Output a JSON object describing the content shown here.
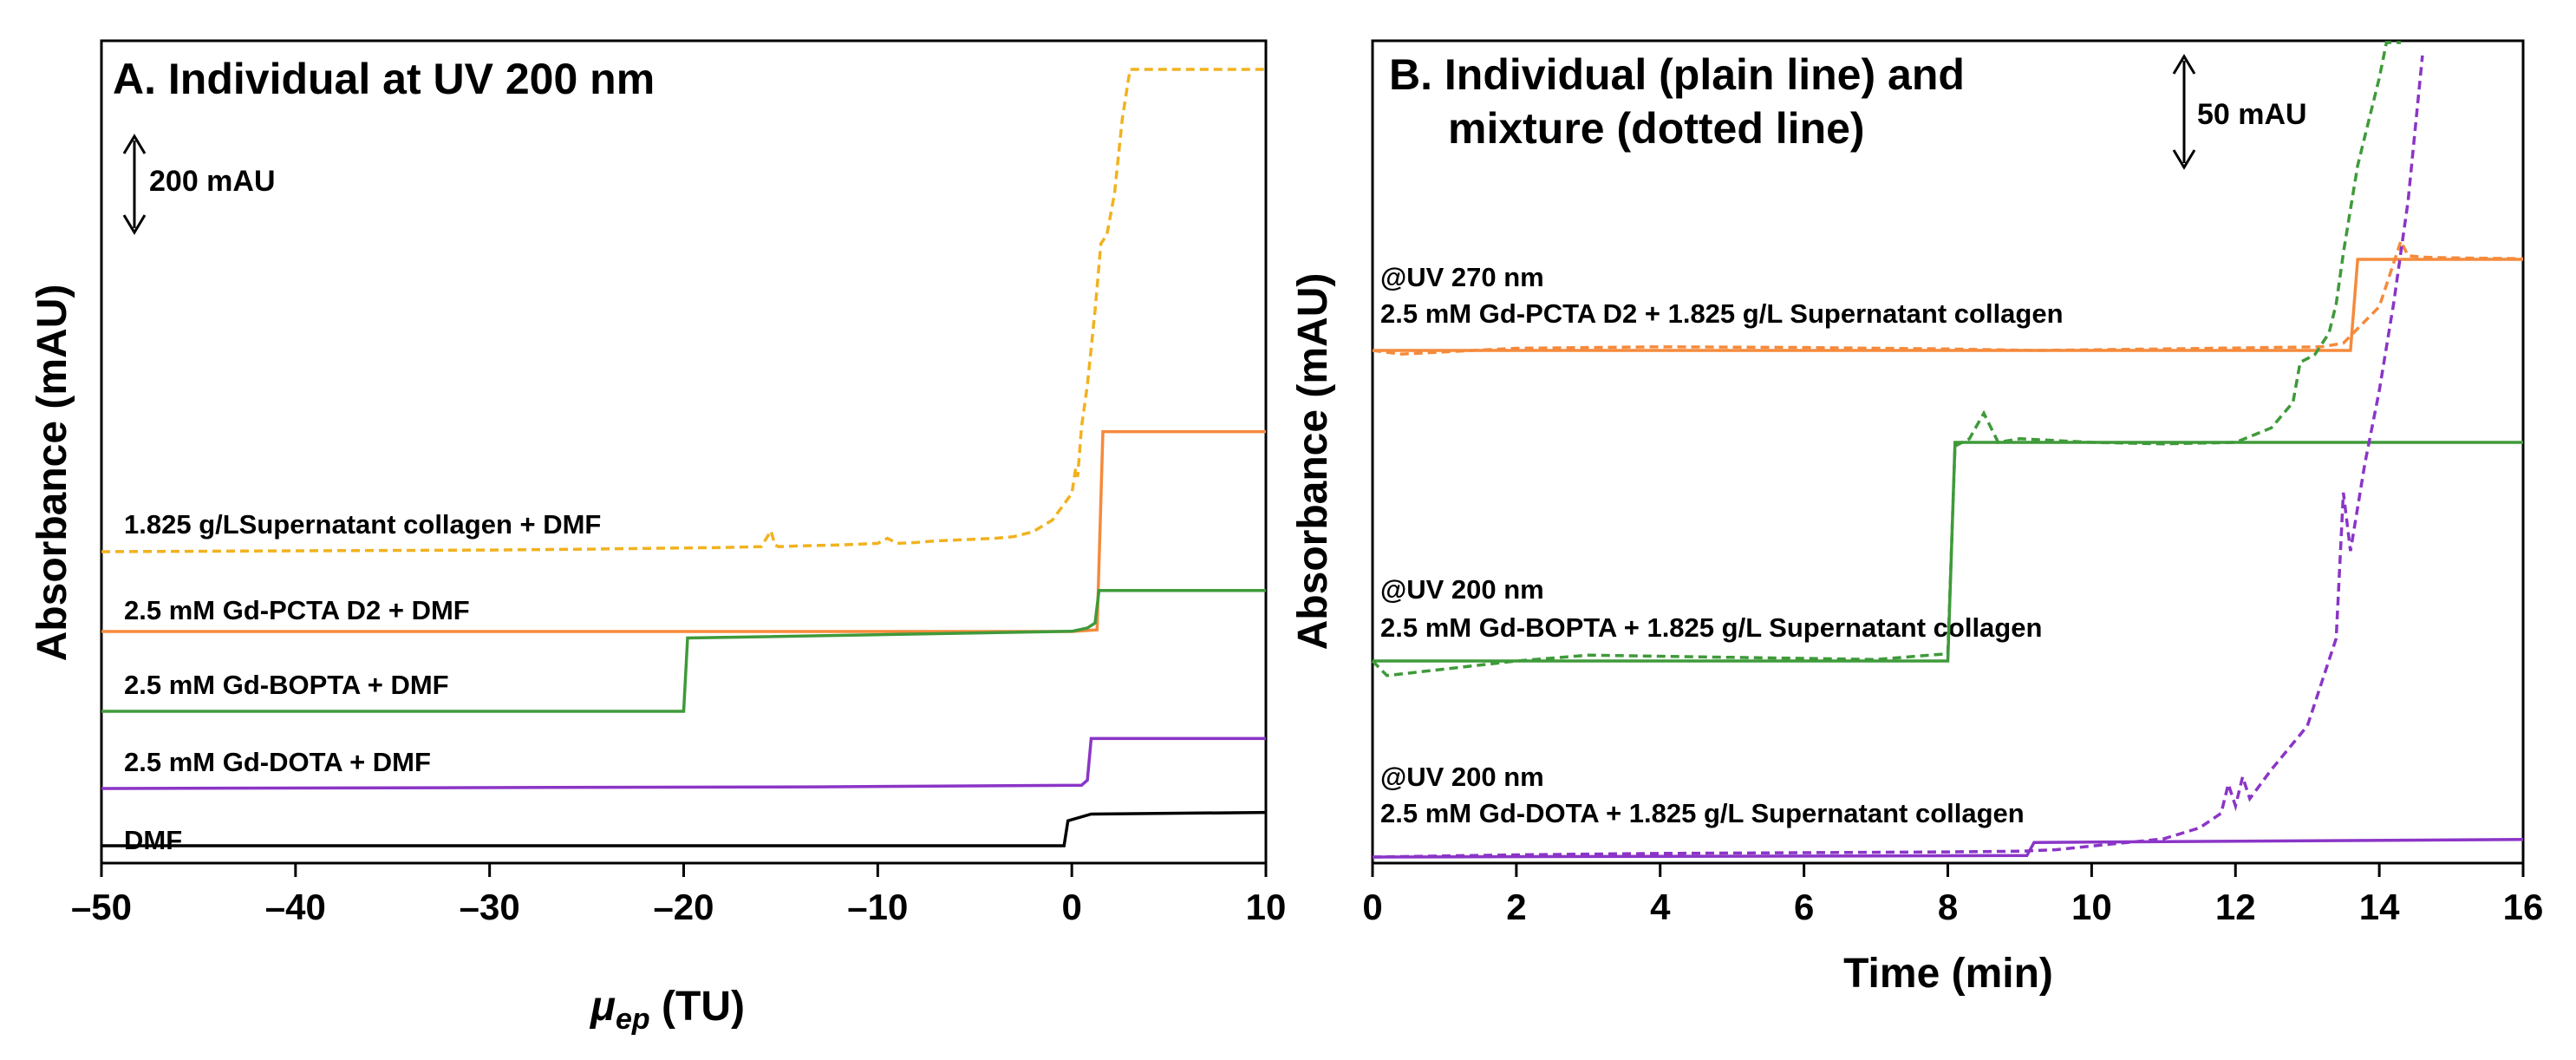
{
  "colors": {
    "orange": "#f58a3c",
    "green": "#3f9a3a",
    "purple": "#8b35c7",
    "yellow": "#f1b21f",
    "black": "#000000"
  },
  "chart_data": [
    {
      "type": "line",
      "title": "A. Individual at UV 200 nm",
      "xlabel_symbol": "μ",
      "xlabel_subscript": "ep",
      "xlabel_unit": " (TU)",
      "ylabel": "Absorbance (mAU)",
      "xlim": [
        -50,
        10
      ],
      "xticks": [
        "–50",
        "–40",
        "–30",
        "–20",
        "–10",
        "0",
        "10"
      ],
      "xtick_values": [
        -50,
        -40,
        -30,
        -20,
        -10,
        0,
        10
      ],
      "scale_bar": "200 mAU",
      "series": [
        {
          "name": "1.825 g/LSupernatant collagen + DMF",
          "color": "yellow",
          "style": "dashed",
          "x": [
            -50,
            -40,
            -30,
            -25,
            -22,
            -18,
            -16,
            -15.5,
            -15.3,
            -15.1,
            -14,
            -12,
            -10,
            -9.5,
            -9,
            -8,
            -7,
            -6,
            -4,
            -3,
            -2,
            -1,
            0,
            0.2,
            0.3,
            0.5,
            0.8,
            1.2,
            1.5,
            1.8,
            2.2,
            2.6,
            3,
            3.6,
            4.2,
            5,
            6,
            7,
            8,
            9,
            10
          ],
          "y": [
            0,
            1,
            2,
            3,
            4,
            5,
            6,
            25,
            8,
            6,
            7,
            8,
            10,
            16,
            10,
            11,
            13,
            14,
            16,
            18,
            24,
            38,
            70,
            100,
            90,
            150,
            200,
            290,
            370,
            380,
            430,
            520,
            590,
            640,
            670,
            690,
            700,
            715,
            725,
            740,
            750
          ]
        },
        {
          "name": "2.5 mM Gd-PCTA D2 + DMF",
          "color": "orange",
          "style": "solid",
          "x": [
            -50,
            0,
            1.3,
            1.6,
            10
          ],
          "y": [
            0,
            0,
            2,
            240,
            240
          ]
        },
        {
          "name": "2.5 mM Gd-BOPTA + DMF",
          "color": "green",
          "style": "solid",
          "x": [
            -50,
            -20,
            -19.8,
            0,
            0.8,
            1.2,
            1.4,
            10
          ],
          "y": [
            0,
            0,
            88,
            96,
            100,
            106,
            145,
            145
          ]
        },
        {
          "name": "2.5 mM Gd-DOTA + DMF",
          "color": "purple",
          "style": "solid",
          "x": [
            -50,
            -13,
            0.5,
            0.8,
            1.0,
            10
          ],
          "y": [
            0,
            2,
            4,
            10,
            60,
            60
          ]
        },
        {
          "name": "DMF",
          "color": "black",
          "style": "solid",
          "x": [
            -50,
            -0.4,
            -0.2,
            1,
            10
          ],
          "y": [
            0,
            0,
            30,
            38,
            40
          ]
        }
      ]
    },
    {
      "type": "line",
      "title": [
        "B. Individual (plain line) and",
        "mixture (dotted line)"
      ],
      "xlabel": "Time (min)",
      "ylabel": "Absorbance (mAU)",
      "xlim": [
        0,
        16
      ],
      "xticks": [
        "0",
        "2",
        "4",
        "6",
        "8",
        "10",
        "12",
        "14",
        "16"
      ],
      "xtick_values": [
        0,
        2,
        4,
        6,
        8,
        10,
        12,
        14,
        16
      ],
      "scale_bar": "50 mAU",
      "groups": [
        {
          "label_line1": "@UV 270 nm",
          "label_line2": "2.5 mM Gd-PCTA D2 + 1.825 g/L Supernatant collagen",
          "color": "orange",
          "individual": {
            "x": [
              0,
              13.6,
              13.7,
              16
            ],
            "y": [
              0,
              0,
              125,
              125
            ]
          },
          "mixture": {
            "x": [
              0,
              0.4,
              2,
              4,
              6,
              8,
              9.2,
              11,
              13.2,
              13.5,
              13.8,
              14,
              14.2,
              14.3,
              14.4,
              14.6,
              15,
              16
            ],
            "y": [
              0,
              -5,
              3,
              5,
              4,
              2,
              0,
              2,
              5,
              10,
              40,
              60,
              120,
              150,
              130,
              128,
              127,
              126
            ]
          }
        },
        {
          "label_line1": "@UV 200 nm",
          "label_line2": "2.5 mM Gd-BOPTA + 1.825 g/L Supernatant collagen",
          "color": "green",
          "individual": {
            "x": [
              0,
              8.0,
              8.1,
              16
            ],
            "y": [
              0,
              0,
              300,
              300
            ]
          },
          "mixture": {
            "x": [
              0,
              0.2,
              2,
              3,
              5,
              7,
              8,
              8.1,
              8.3,
              8.5,
              8.7,
              9,
              10,
              11,
              12,
              12.5,
              12.8,
              12.9,
              13.1,
              13.3,
              13.4,
              13.5,
              13.6,
              13.7,
              13.8,
              13.9,
              14.0,
              14.1,
              14.3
            ],
            "y": [
              0,
              -20,
              0,
              8,
              5,
              2,
              10,
              295,
              305,
              340,
              300,
              305,
              300,
              298,
              300,
              320,
              355,
              410,
              420,
              450,
              490,
              560,
              620,
              680,
              720,
              760,
              800,
              860,
              1000
            ]
          }
        },
        {
          "label_line1": "@UV 200 nm",
          "label_line2": "2.5 mM Gd-DOTA + 1.825 g/L Supernatant collagen",
          "color": "purple",
          "individual": {
            "x": [
              0,
              9.1,
              9.2,
              16
            ],
            "y": [
              0,
              2,
              20,
              24
            ]
          },
          "mixture": {
            "x": [
              0,
              2,
              4,
              6,
              8,
              9,
              9.5,
              10,
              10.5,
              11,
              11.5,
              11.8,
              11.9,
              12.0,
              12.1,
              12.2,
              12.5,
              13.0,
              13.4,
              13.5,
              13.6,
              13.8,
              14.0,
              14.2,
              14.4,
              14.6
            ],
            "y": [
              0,
              3,
              5,
              6,
              7,
              8,
              10,
              15,
              20,
              25,
              40,
              60,
              100,
              70,
              110,
              80,
              120,
              180,
              300,
              500,
              420,
              540,
              640,
              760,
              900,
              1100
            ]
          }
        }
      ]
    }
  ]
}
